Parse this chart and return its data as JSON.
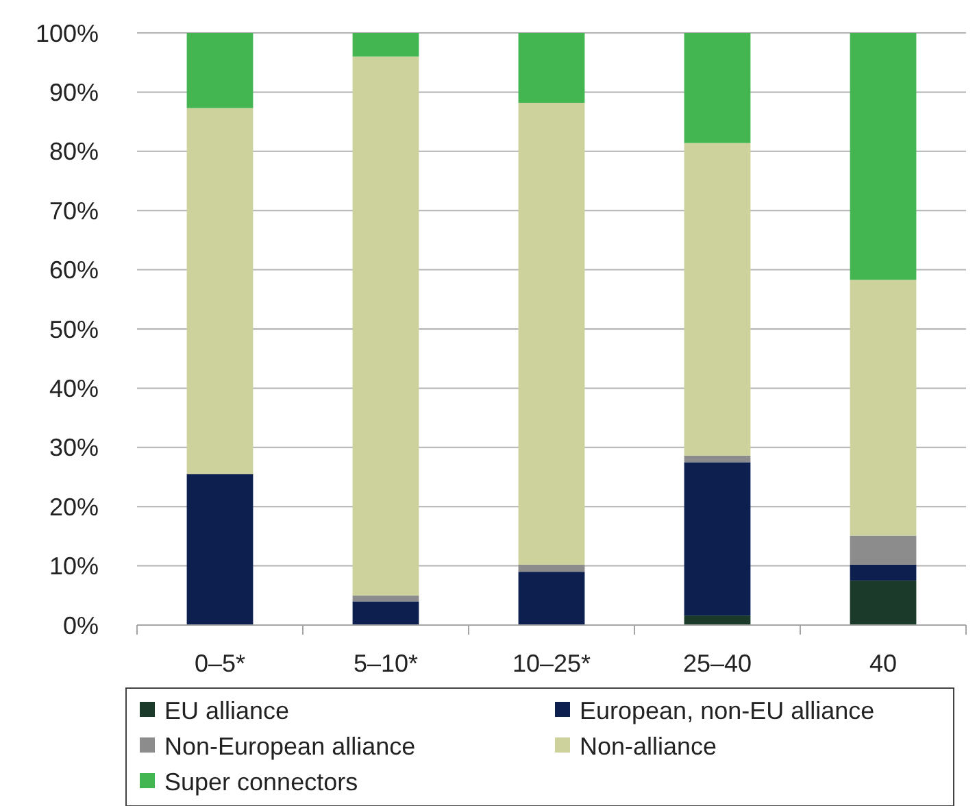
{
  "chart_data": {
    "type": "bar",
    "stacked": true,
    "categories": [
      "0–5*",
      "5–10*",
      "10–25*",
      "25–40",
      "40"
    ],
    "series": [
      {
        "name": "EU alliance",
        "color": "#1b3a2a",
        "values": [
          0,
          0,
          0,
          1.6,
          7.5
        ]
      },
      {
        "name": "European, non-EU alliance",
        "color": "#0d1f4f",
        "values": [
          25.5,
          4,
          9,
          25.9,
          2.7
        ]
      },
      {
        "name": "Non-European alliance",
        "color": "#8c8c8c",
        "values": [
          0,
          1,
          1.2,
          1.1,
          4.9
        ]
      },
      {
        "name": "Non-alliance",
        "color": "#cdd19c",
        "values": [
          61.8,
          91,
          78,
          52.8,
          43.2
        ]
      },
      {
        "name": "Super connectors",
        "color": "#43b551",
        "values": [
          12.7,
          4,
          11.8,
          18.6,
          41.7
        ]
      }
    ],
    "ylim": [
      0,
      100
    ],
    "yticks": [
      {
        "value": 0,
        "label": "0%"
      },
      {
        "value": 10,
        "label": "10%"
      },
      {
        "value": 20,
        "label": "20%"
      },
      {
        "value": 30,
        "label": "30%"
      },
      {
        "value": 40,
        "label": "40%"
      },
      {
        "value": 50,
        "label": "50%"
      },
      {
        "value": 60,
        "label": "60%"
      },
      {
        "value": 70,
        "label": "70%"
      },
      {
        "value": 80,
        "label": "80%"
      },
      {
        "value": 90,
        "label": "90%"
      },
      {
        "value": 100,
        "label": "100%"
      }
    ],
    "grid": "y",
    "legend": "bottom"
  }
}
